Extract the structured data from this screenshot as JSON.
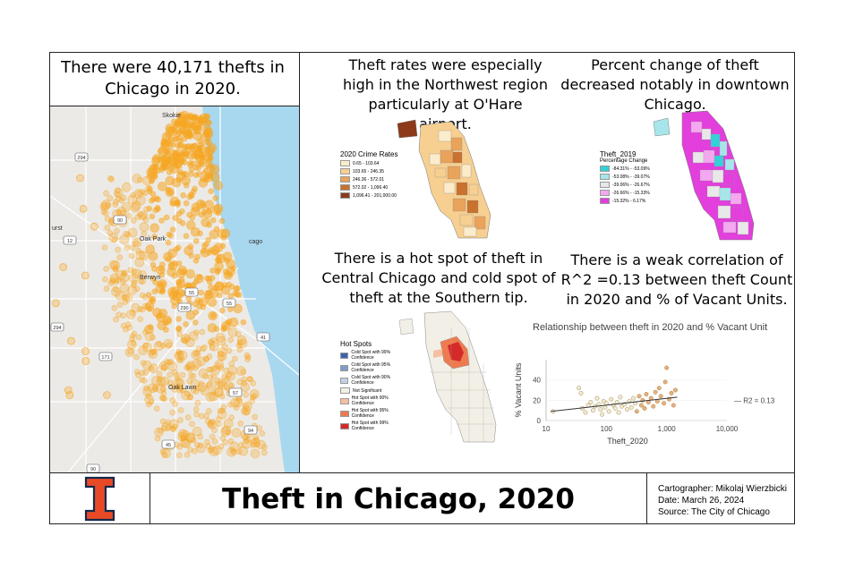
{
  "panels": {
    "main_caption": "There were 40,171 thefts in Chicago in 2020.",
    "rates_caption": "Theft rates were especially high in the Northwest region particularly at O'Hare airport.",
    "change_caption": "Percent change of theft decreased notably in downtown Chicago.",
    "hotspot_caption": "There is a hot spot of theft in Central Chicago and cold spot of theft at the Southern tip.",
    "correlation_caption": "There is a weak correlation of R^2 =0.13 between theft Count in 2020 and % of Vacant Units."
  },
  "main_map": {
    "places": [
      "Skokie",
      "Oak Park",
      "Berwyn",
      "Oak Lawn",
      "cago",
      "urst"
    ],
    "road_shields": [
      "294",
      "90",
      "12",
      "55",
      "290",
      "171",
      "55",
      "41",
      "294",
      "57",
      "94",
      "45",
      "90"
    ],
    "point_color": "#f5a623",
    "water_color": "#a8d8f0"
  },
  "rates_legend": {
    "title": "2020 Crime Rates",
    "items": [
      {
        "label": "0.65 - 103.64",
        "color": "#fbeccb"
      },
      {
        "label": "103.65 - 246.35",
        "color": "#f6cf91"
      },
      {
        "label": "246.36 - 572.01",
        "color": "#e9a35b"
      },
      {
        "label": "572.02 - 1,096.40",
        "color": "#c9712f"
      },
      {
        "label": "1,096.41 - 201,000.00",
        "color": "#8c3a1a"
      }
    ]
  },
  "change_legend": {
    "title": "Theft_2019",
    "subtitle": "Percentage Change",
    "items": [
      {
        "label": "-84.31% - -53.09%",
        "color": "#35d0d8"
      },
      {
        "label": "-53.08% - -39.07%",
        "color": "#a6e6ea"
      },
      {
        "label": "-39.06% - -26.67%",
        "color": "#e8e8e8"
      },
      {
        "label": "-26.66% - -15.33%",
        "color": "#f3a8f0"
      },
      {
        "label": "-15.32% - 6.17%",
        "color": "#e23fdc"
      }
    ]
  },
  "hotspot_legend": {
    "title": "Hot Spots",
    "items": [
      {
        "label": "Cold Spot with 99% Confidence",
        "color": "#3a64b0"
      },
      {
        "label": "Cold Spot with 95% Confidence",
        "color": "#7f9cc9"
      },
      {
        "label": "Cold Spot with 90% Confidence",
        "color": "#c3cfe3"
      },
      {
        "label": "Not Significant",
        "color": "#f2efe6"
      },
      {
        "label": "Hot Spot with 90% Confidence",
        "color": "#f6bfa1"
      },
      {
        "label": "Hot Spot with 95% Confidence",
        "color": "#ee7b50"
      },
      {
        "label": "Hot Spot with 99% Confidence",
        "color": "#d42a2a"
      }
    ]
  },
  "chart_data": {
    "type": "scatter",
    "title": "Relationship between theft in 2020 and % Vacant Unit",
    "xlabel": "Theft_2020",
    "ylabel": "% Vacant Units",
    "x_scale": "log",
    "xlim": [
      10,
      10000
    ],
    "ylim": [
      0,
      60
    ],
    "x_ticks": [
      "10",
      "100",
      "1,000",
      "10,000"
    ],
    "y_ticks": [
      "0",
      "20",
      "40"
    ],
    "trendline_label": "R2 = 0.13",
    "trendline": {
      "x": [
        12,
        1500
      ],
      "y": [
        9,
        23
      ]
    },
    "points": [
      {
        "x": 13,
        "y": 9
      },
      {
        "x": 35,
        "y": 32
      },
      {
        "x": 38,
        "y": 27
      },
      {
        "x": 40,
        "y": 12
      },
      {
        "x": 45,
        "y": 8
      },
      {
        "x": 50,
        "y": 15
      },
      {
        "x": 55,
        "y": 18
      },
      {
        "x": 60,
        "y": 10
      },
      {
        "x": 65,
        "y": 14
      },
      {
        "x": 70,
        "y": 22
      },
      {
        "x": 75,
        "y": 16
      },
      {
        "x": 80,
        "y": 11
      },
      {
        "x": 85,
        "y": 6
      },
      {
        "x": 90,
        "y": 19
      },
      {
        "x": 95,
        "y": 13
      },
      {
        "x": 100,
        "y": 17
      },
      {
        "x": 110,
        "y": 9
      },
      {
        "x": 120,
        "y": 21
      },
      {
        "x": 130,
        "y": 15
      },
      {
        "x": 140,
        "y": 12
      },
      {
        "x": 150,
        "y": 18
      },
      {
        "x": 160,
        "y": 8
      },
      {
        "x": 170,
        "y": 23
      },
      {
        "x": 180,
        "y": 14
      },
      {
        "x": 200,
        "y": 16
      },
      {
        "x": 220,
        "y": 11
      },
      {
        "x": 240,
        "y": 19
      },
      {
        "x": 260,
        "y": 13
      },
      {
        "x": 280,
        "y": 22
      },
      {
        "x": 300,
        "y": 17
      },
      {
        "x": 320,
        "y": 9
      },
      {
        "x": 350,
        "y": 24
      },
      {
        "x": 380,
        "y": 15
      },
      {
        "x": 400,
        "y": 20
      },
      {
        "x": 430,
        "y": 12
      },
      {
        "x": 460,
        "y": 26
      },
      {
        "x": 500,
        "y": 18
      },
      {
        "x": 550,
        "y": 22
      },
      {
        "x": 600,
        "y": 14
      },
      {
        "x": 650,
        "y": 28
      },
      {
        "x": 700,
        "y": 19
      },
      {
        "x": 750,
        "y": 32
      },
      {
        "x": 800,
        "y": 24
      },
      {
        "x": 900,
        "y": 17
      },
      {
        "x": 950,
        "y": 38
      },
      {
        "x": 1000,
        "y": 52
      },
      {
        "x": 1100,
        "y": 21
      },
      {
        "x": 1200,
        "y": 27
      },
      {
        "x": 1300,
        "y": 15
      },
      {
        "x": 1400,
        "y": 30
      }
    ]
  },
  "footer": {
    "title": "Theft in Chicago, 2020",
    "cartographer": "Cartographer: Mikolaj Wierzbicki",
    "date": "Date: March 26, 2024",
    "source": "Source: The City of Chicago"
  },
  "colors": {
    "illinois_orange": "#e84a27",
    "illinois_blue": "#13294b"
  }
}
